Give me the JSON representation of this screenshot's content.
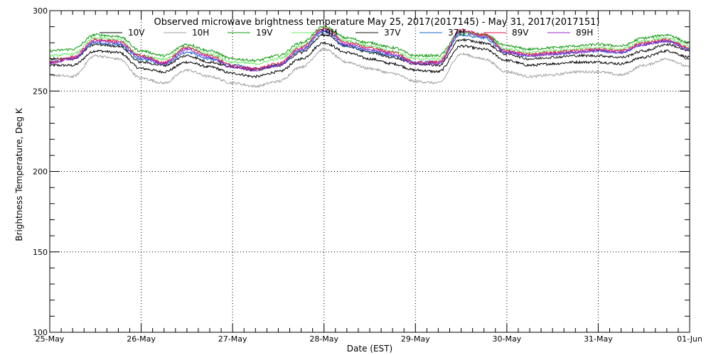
{
  "chart_data": {
    "type": "line",
    "title": "Observed microwave brightness temperature May 25, 2017(2017145) - May 31, 2017(2017151)",
    "xlabel": "Date (EST)",
    "ylabel": "Brightness Temperature, Deg K",
    "x_tick_labels": [
      "25-May",
      "26-May",
      "27-May",
      "28-May",
      "29-May",
      "30-May",
      "31-May",
      "01-Jun"
    ],
    "x_range_days": [
      0,
      7
    ],
    "ylim": [
      100,
      300
    ],
    "y_ticks": [
      100,
      150,
      200,
      250,
      300
    ],
    "grid": true,
    "legend_position": "top",
    "x_days": [
      0,
      0.25,
      0.5,
      0.75,
      1.0,
      1.25,
      1.5,
      1.75,
      2.0,
      2.25,
      2.5,
      2.75,
      3.0,
      3.25,
      3.5,
      3.75,
      4.0,
      4.25,
      4.5,
      4.75,
      5.0,
      5.25,
      5.5,
      5.75,
      6.0,
      6.25,
      6.5,
      6.75,
      7.0
    ],
    "series": [
      {
        "name": "10V",
        "color": "#000000",
        "values": [
          266,
          266,
          275,
          274,
          264,
          262,
          268,
          265,
          261,
          259,
          262,
          270,
          280,
          274,
          270,
          267,
          263,
          262,
          278,
          276,
          269,
          266,
          267,
          268,
          268,
          267,
          271,
          275,
          271
        ]
      },
      {
        "name": "10H",
        "color": "#a0a0a0",
        "values": [
          260,
          259,
          272,
          270,
          258,
          255,
          263,
          259,
          255,
          253,
          256,
          265,
          276,
          268,
          264,
          261,
          256,
          255,
          273,
          270,
          262,
          259,
          260,
          262,
          262,
          260,
          266,
          270,
          265
        ]
      },
      {
        "name": "19V",
        "color": "#119911",
        "values": [
          275,
          276,
          285,
          284,
          275,
          272,
          279,
          275,
          270,
          269,
          272,
          280,
          290,
          283,
          280,
          277,
          272,
          272,
          287,
          285,
          278,
          276,
          277,
          278,
          279,
          278,
          283,
          285,
          280
        ]
      },
      {
        "name": "19H",
        "color": "#66ee66",
        "values": [
          272,
          273,
          283,
          282,
          272,
          270,
          277,
          273,
          268,
          267,
          270,
          278,
          289,
          281,
          278,
          275,
          270,
          270,
          286,
          284,
          276,
          274,
          275,
          276,
          277,
          276,
          281,
          283,
          278
        ]
      },
      {
        "name": "37V",
        "color": "#111111",
        "values": [
          270,
          270,
          279,
          278,
          268,
          266,
          272,
          268,
          265,
          263,
          266,
          274,
          285,
          278,
          274,
          271,
          267,
          266,
          282,
          280,
          273,
          270,
          271,
          272,
          272,
          271,
          275,
          279,
          275
        ]
      },
      {
        "name": "37H",
        "color": "#1166cc",
        "values": [
          268,
          270,
          280,
          279,
          270,
          267,
          274,
          270,
          266,
          264,
          266,
          275,
          287,
          278,
          275,
          272,
          268,
          268,
          285,
          283,
          274,
          272,
          273,
          274,
          275,
          274,
          279,
          281,
          276
        ]
      },
      {
        "name": "89V",
        "color": "#dd1144",
        "values": [
          268,
          271,
          282,
          281,
          272,
          268,
          277,
          272,
          266,
          264,
          267,
          277,
          289,
          280,
          277,
          274,
          268,
          268,
          288,
          285,
          275,
          273,
          274,
          275,
          276,
          275,
          280,
          282,
          277
        ]
      },
      {
        "name": "89H",
        "color": "#9922cc",
        "values": [
          267,
          270,
          281,
          280,
          271,
          267,
          276,
          271,
          265,
          263,
          266,
          276,
          288,
          279,
          276,
          273,
          267,
          267,
          287,
          284,
          274,
          272,
          273,
          274,
          275,
          274,
          279,
          281,
          276
        ]
      }
    ]
  }
}
